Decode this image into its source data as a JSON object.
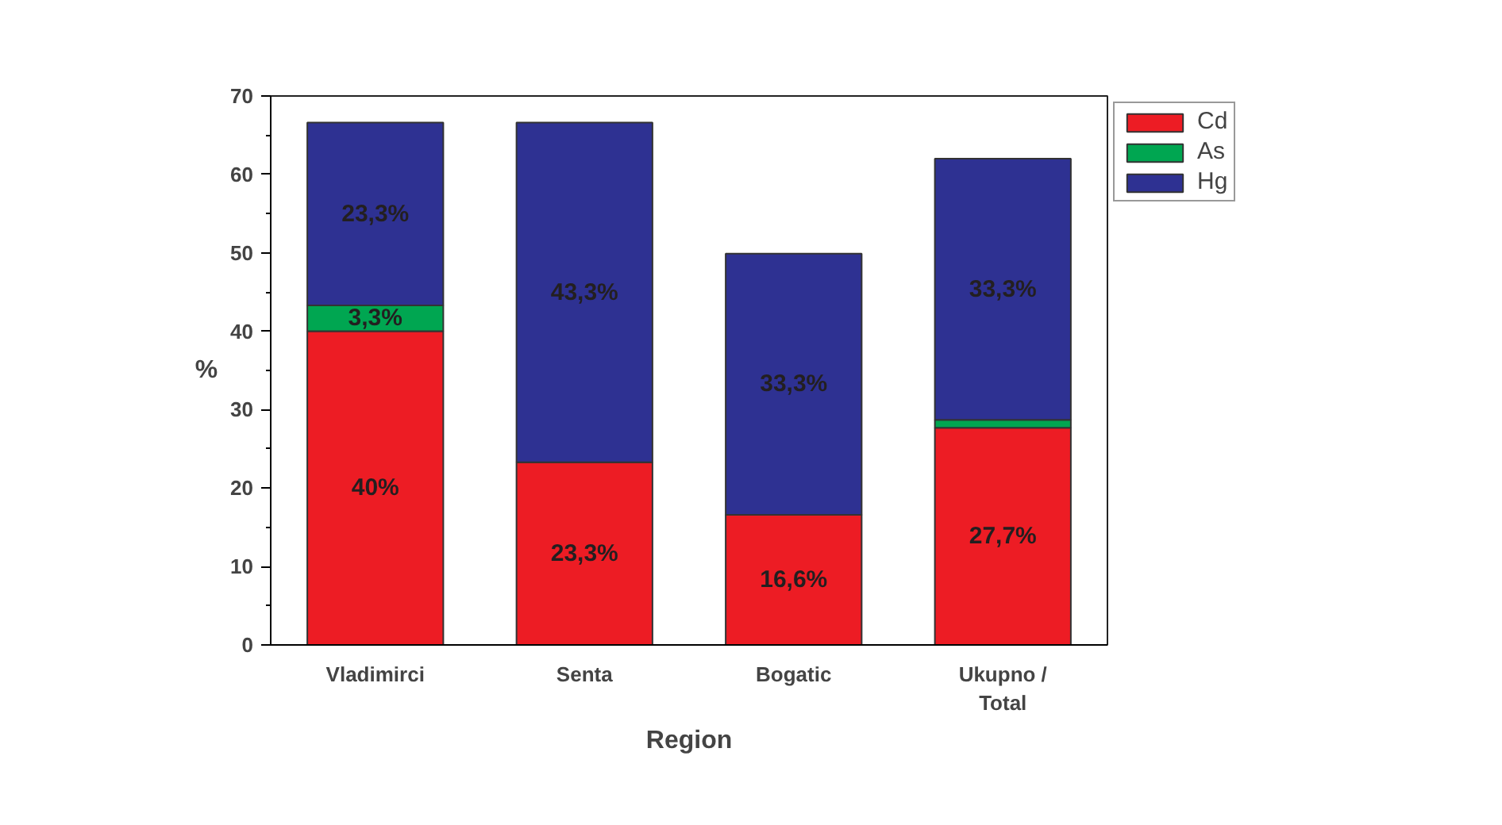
{
  "chart_data": {
    "type": "bar",
    "stacked": true,
    "xlabel": "Region",
    "ylabel": "%",
    "categories": [
      "Vladimirci",
      "Senta",
      "Bogatic",
      "Ukupno / Total"
    ],
    "series": [
      {
        "name": "Cd",
        "color": "#ed1c24",
        "values": [
          40,
          23.3,
          16.6,
          27.7
        ],
        "value_labels": [
          "40%",
          "23,3%",
          "16,6%",
          "27,7%"
        ]
      },
      {
        "name": "As",
        "color": "#00a651",
        "values": [
          3.3,
          0,
          0,
          1.0
        ],
        "value_labels": [
          "3,3%",
          null,
          null,
          null
        ]
      },
      {
        "name": "Hg",
        "color": "#2e3192",
        "values": [
          23.3,
          43.3,
          33.3,
          33.3
        ],
        "value_labels": [
          "23,3%",
          "43,3%",
          "33,3%",
          "33,3%"
        ]
      }
    ],
    "ylim": [
      0,
      70
    ],
    "yticks": [
      0,
      10,
      20,
      30,
      40,
      50,
      60,
      70
    ],
    "grid": false,
    "legend": "top right"
  }
}
